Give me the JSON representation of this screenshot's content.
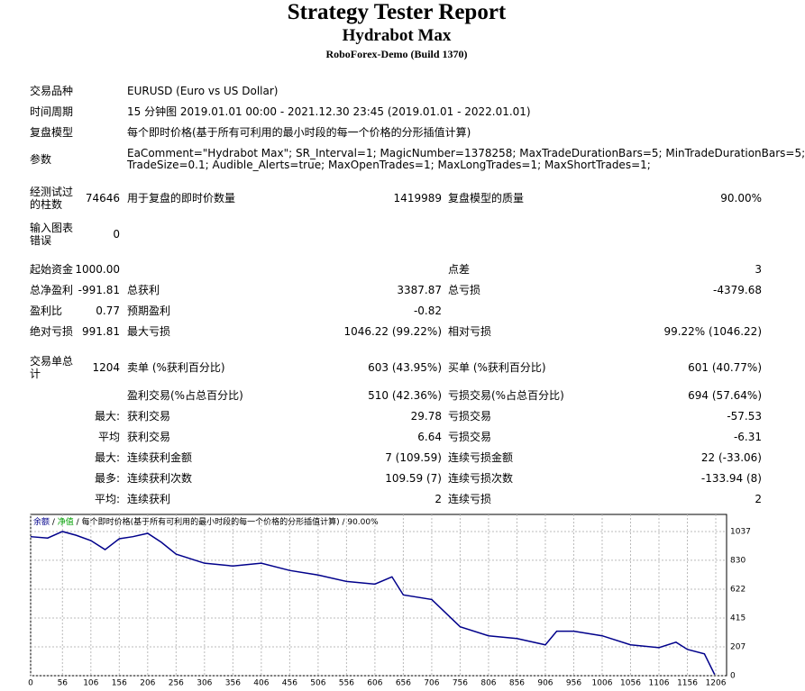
{
  "header": {
    "title": "Strategy Tester Report",
    "subtitle": "Hydrabot Max",
    "broker": "RoboForex-Demo (Build 1370)"
  },
  "info": [
    {
      "label": "交易品种",
      "value": [
        "EURUSD (Euro vs US Dollar)"
      ]
    },
    {
      "label": "时间周期",
      "value": [
        "15 分钟图 2019.01.01 00:00 - 2021.12.30 23:45 (2019.01.01 - 2022.01.01)"
      ]
    },
    {
      "label": "复盘模型",
      "value": [
        "每个即时价格(基于所有可利用的最小时段的每一个价格的分形插值计算)"
      ]
    },
    {
      "label": "参数",
      "value": [
        "EaComment=\"Hydrabot Max\"; SR_Interval=1; MagicNumber=1378258; MaxTradeDurationBars=5; MinTradeDurationBars=5;",
        "TradeSize=0.1; Audible_Alerts=true; MaxOpenTrades=1; MaxLongTrades=1; MaxShortTrades=1;"
      ]
    }
  ],
  "stats": [
    {
      "l1": "经测试过的柱数",
      "v1": "74646",
      "l2": "用于复盘的即时价数量",
      "v2": "1419989",
      "l3": "复盘模型的质量",
      "v3": "90.00%"
    },
    {
      "l1": "输入图表错误",
      "v1": "0"
    },
    {
      "l1": "起始资金",
      "v1": "1000.00",
      "l3": "点差",
      "v3": "3"
    },
    {
      "l1": "总净盈利",
      "v1": "-991.81",
      "l2": "总获利",
      "v2": "3387.87",
      "l3": "总亏损",
      "v3": "-4379.68"
    },
    {
      "l1": "盈利比",
      "v1": "0.77",
      "l2": "预期盈利",
      "v2": "-0.82"
    },
    {
      "l1": "绝对亏损",
      "v1": "991.81",
      "l2": "最大亏损",
      "v2": "1046.22 (99.22%)",
      "l3": "相对亏损",
      "v3": "99.22% (1046.22)"
    },
    {
      "l1": "交易单总计",
      "v1": "1204",
      "l2": "卖单 (%获利百分比)",
      "v2": "603 (43.95%)",
      "l3": "买单 (%获利百分比)",
      "v3": "601 (40.77%)"
    },
    {
      "l2": "盈利交易(%占总百分比)",
      "v2": "510 (42.36%)",
      "l3": "亏损交易(%占总百分比)",
      "v3": "694 (57.64%)"
    },
    {
      "v1": "最大:",
      "l2": "获利交易",
      "v2": "29.78",
      "l3": "亏损交易",
      "v3": "-57.53"
    },
    {
      "v1": "平均",
      "l2": "获利交易",
      "v2": "6.64",
      "l3": "亏损交易",
      "v3": "-6.31"
    },
    {
      "v1": "最大:",
      "l2": "连续获利金额",
      "v2": "7 (109.59)",
      "l3": "连续亏损金额",
      "v3": "22 (-33.06)"
    },
    {
      "v1": "最多:",
      "l2": "连续获利次数",
      "v2": "109.59 (7)",
      "l3": "连续亏损次数",
      "v3": "-133.94 (8)"
    },
    {
      "v1": "平均:",
      "l2": "连续获利",
      "v2": "2",
      "l3": "连续亏损",
      "v3": "2"
    }
  ],
  "chart_data": {
    "type": "line",
    "separator": " / ",
    "equity_label": {
      "text": "净值",
      "color": "#00a000"
    },
    "model_note": "每个即时价格(基于所有可利用的最小时段的每一个价格的分形插值计算)",
    "quality": "90.00%",
    "x": [
      0,
      30,
      56,
      80,
      106,
      131,
      156,
      180,
      206,
      230,
      256,
      306,
      356,
      406,
      456,
      506,
      556,
      606,
      636,
      656,
      706,
      756,
      806,
      856,
      906,
      926,
      956,
      1006,
      1056,
      1106,
      1136,
      1156,
      1186,
      1204
    ],
    "series": [
      {
        "name": "余额",
        "color": "#00008b",
        "values": [
          1000,
          990,
          1037,
          1010,
          972,
          907,
          985,
          1000,
          1024,
          960,
          874,
          809,
          789,
          809,
          757,
          724,
          678,
          659,
          711,
          581,
          548,
          352,
          287,
          267,
          222,
          320,
          320,
          287,
          222,
          202,
          241,
          189,
          157,
          8.19
        ]
      }
    ],
    "xlim": [
      0,
      1225
    ],
    "ylim": [
      0,
      1160
    ],
    "xticks": [
      0,
      56,
      106,
      156,
      206,
      256,
      306,
      356,
      406,
      456,
      506,
      556,
      606,
      656,
      706,
      756,
      806,
      856,
      906,
      956,
      1006,
      1056,
      1106,
      1156,
      1206
    ],
    "yticks": [
      0,
      207,
      415,
      622,
      830,
      1037
    ],
    "grid": true
  }
}
